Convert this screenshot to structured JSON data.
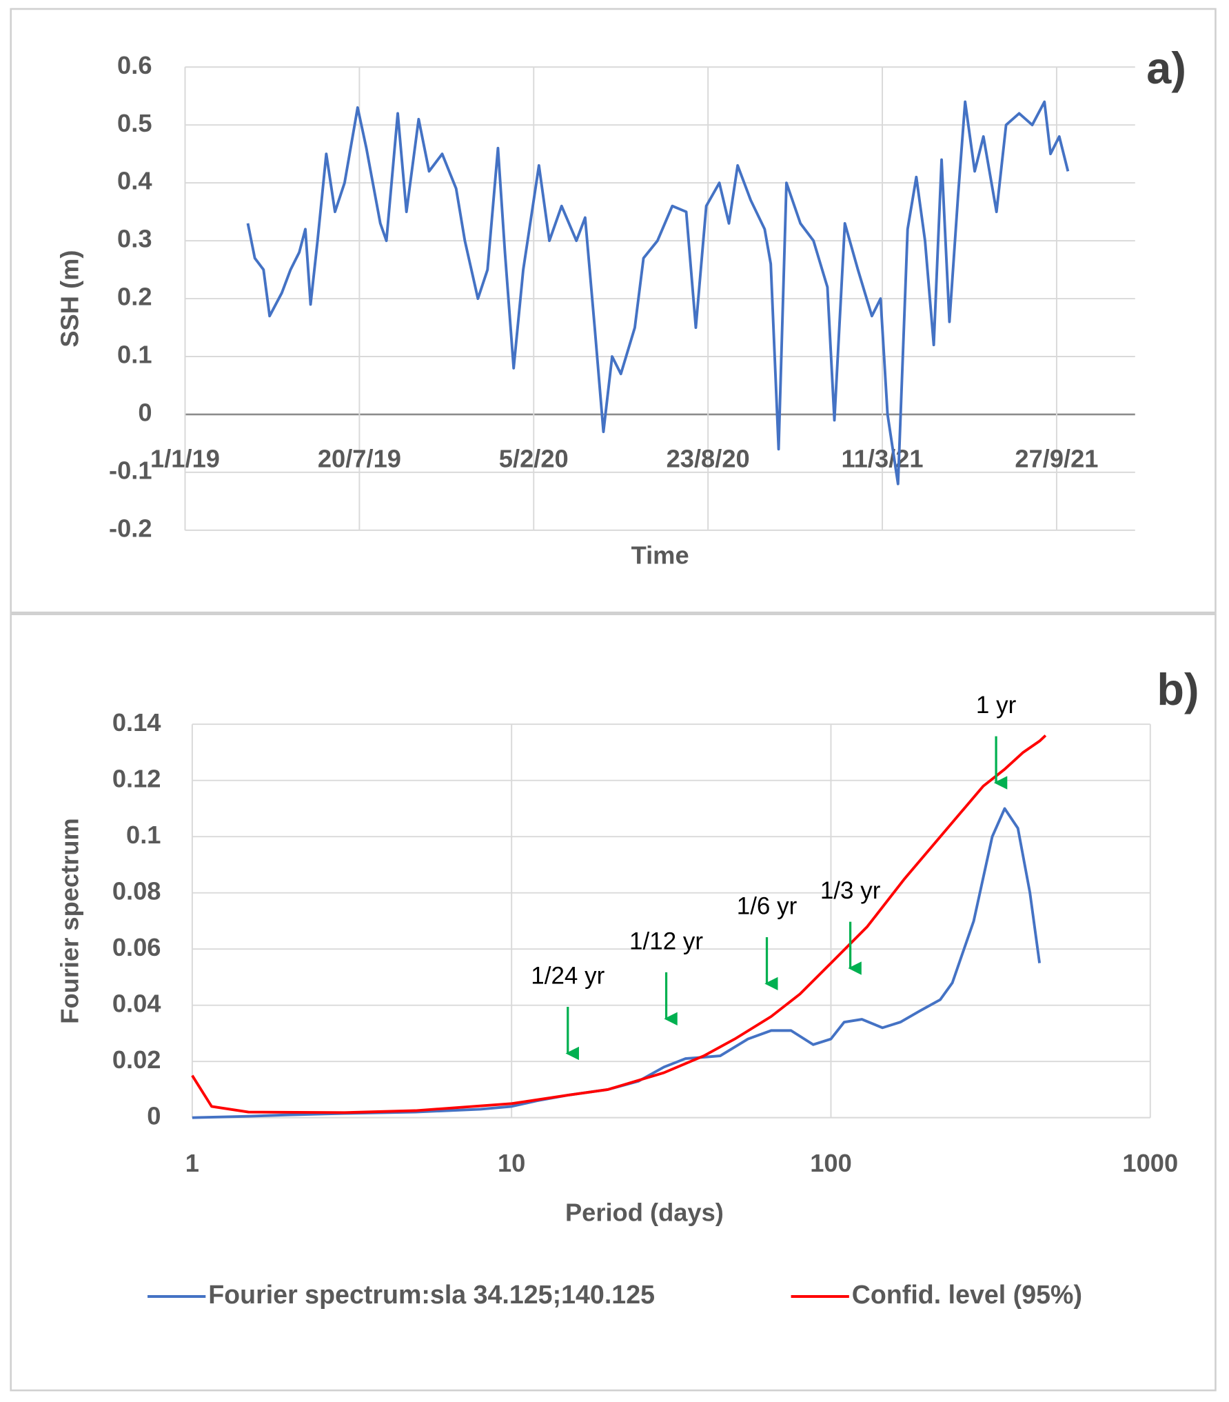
{
  "chart_data": [
    {
      "type": "line",
      "panel_label": "a)",
      "x_label": "Time",
      "y_label": "SSH (m)",
      "x": [
        "14/3/19",
        "22/3/19",
        "1/4/19",
        "8/4/19",
        "22/4/19",
        "2/5/19",
        "12/5/19",
        "19/5/19",
        "25/5/19",
        "2/6/19",
        "12/6/19",
        "22/6/19",
        "3/7/19",
        "18/7/19",
        "28/7/19",
        "13/8/19",
        "20/8/19",
        "2/9/19",
        "12/9/19",
        "26/9/19",
        "8/10/19",
        "23/10/19",
        "8/11/19",
        "18/11/19",
        "3/12/19",
        "14/12/19",
        "26/12/19",
        "3/1/20",
        "13/1/20",
        "24/1/20",
        "11/2/20",
        "23/2/20",
        "8/3/20",
        "25/3/20",
        "4/4/20",
        "15/4/20",
        "25/4/20",
        "5/5/20",
        "15/5/20",
        "31/5/20",
        "10/6/20",
        "26/6/20",
        "13/7/20",
        "29/7/20",
        "9/8/20",
        "21/8/20",
        "5/9/20",
        "16/9/20",
        "26/9/20",
        "11/10/20",
        "27/10/20",
        "3/11/20",
        "12/11/20",
        "21/11/20",
        "7/12/20",
        "22/12/20",
        "7/1/21",
        "15/1/21",
        "27/1/21",
        "11/2/21",
        "27/2/21",
        "9/3/21",
        "17/3/21",
        "29/3/21",
        "9/4/21",
        "19/4/21",
        "29/4/21",
        "9/5/21",
        "18/5/21",
        "27/5/21",
        "6/6/21",
        "14/6/21",
        "25/6/21",
        "5/7/21",
        "20/7/21",
        "31/7/21",
        "15/8/21",
        "30/8/21",
        "13/9/21",
        "20/9/21",
        "30/9/21",
        "10/10/21"
      ],
      "series": [
        {
          "color": "#4472c4",
          "values": [
            0.33,
            0.27,
            0.25,
            0.17,
            0.21,
            0.25,
            0.28,
            0.32,
            0.19,
            0.3,
            0.45,
            0.35,
            0.4,
            0.53,
            0.46,
            0.33,
            0.3,
            0.52,
            0.35,
            0.51,
            0.42,
            0.45,
            0.39,
            0.3,
            0.2,
            0.25,
            0.46,
            0.28,
            0.08,
            0.25,
            0.43,
            0.3,
            0.36,
            0.3,
            0.34,
            0.15,
            -0.03,
            0.1,
            0.07,
            0.15,
            0.27,
            0.3,
            0.36,
            0.35,
            0.15,
            0.36,
            0.4,
            0.33,
            0.43,
            0.37,
            0.32,
            0.26,
            -0.06,
            0.4,
            0.33,
            0.3,
            0.22,
            -0.01,
            0.33,
            0.25,
            0.17,
            0.2,
            0.0,
            -0.12,
            0.32,
            0.41,
            0.3,
            0.12,
            0.44,
            0.16,
            0.38,
            0.54,
            0.42,
            0.48,
            0.35,
            0.5,
            0.52,
            0.5,
            0.54,
            0.45,
            0.48,
            0.42
          ]
        }
      ],
      "xlim": [
        "1/1/19",
        "26/12/21"
      ],
      "xticks": [
        "1/1/19",
        "20/7/19",
        "5/2/20",
        "23/8/20",
        "11/3/21",
        "27/9/21"
      ],
      "ylim": [
        -0.2,
        0.6
      ],
      "yticks": [
        -0.2,
        -0.1,
        0,
        0.1,
        0.2,
        0.3,
        0.4,
        0.5,
        0.6
      ],
      "grid": true
    },
    {
      "type": "line",
      "panel_label": "b)",
      "x_label": "Period (days)",
      "y_label": "Fourier spectrum",
      "xscale": "log",
      "series": [
        {
          "name": "Fourier spectrum:sla 34.125;140.125",
          "color": "#4472c4",
          "x": [
            1,
            1.5,
            2,
            3,
            5,
            8,
            10,
            12,
            15,
            20,
            25,
            30,
            35,
            45,
            55,
            65,
            75,
            88,
            100,
            110,
            125,
            145,
            165,
            190,
            220,
            240,
            280,
            320,
            350,
            385,
            420,
            450
          ],
          "values": [
            0,
            0.0005,
            0.001,
            0.0015,
            0.002,
            0.003,
            0.004,
            0.006,
            0.008,
            0.01,
            0.013,
            0.018,
            0.021,
            0.022,
            0.028,
            0.031,
            0.031,
            0.026,
            0.028,
            0.034,
            0.035,
            0.032,
            0.034,
            0.038,
            0.042,
            0.048,
            0.07,
            0.1,
            0.11,
            0.103,
            0.08,
            0.055
          ]
        },
        {
          "name": "Confid. level (95%)",
          "color": "#ff0000",
          "x": [
            1,
            1.15,
            1.5,
            3,
            5,
            10,
            15,
            20,
            30,
            40,
            50,
            65,
            80,
            100,
            130,
            170,
            220,
            300,
            350,
            400,
            450,
            470
          ],
          "values": [
            0.015,
            0.004,
            0.002,
            0.0018,
            0.0025,
            0.005,
            0.008,
            0.01,
            0.016,
            0.022,
            0.028,
            0.036,
            0.044,
            0.055,
            0.068,
            0.085,
            0.1,
            0.118,
            0.124,
            0.13,
            0.134,
            0.136
          ]
        }
      ],
      "annotations": [
        {
          "text": "1/24 yr",
          "x": 15,
          "y": 0.0197
        },
        {
          "text": "1/12 yr",
          "x": 30.5,
          "y": 0.032
        },
        {
          "text": "1/6 yr",
          "x": 63,
          "y": 0.0445
        },
        {
          "text": "1/3 yr",
          "x": 115,
          "y": 0.05
        },
        {
          "text": "1 yr",
          "x": 329,
          "y": 0.116
        }
      ],
      "arrow_color": "#00b050",
      "xlim": [
        1,
        1000
      ],
      "xticks": [
        1,
        10,
        100,
        1000
      ],
      "ylim": [
        0,
        0.14
      ],
      "yticks": [
        0,
        0.02,
        0.04,
        0.06,
        0.08,
        0.1,
        0.12,
        0.14
      ],
      "grid": true,
      "legend": "bottom"
    }
  ]
}
